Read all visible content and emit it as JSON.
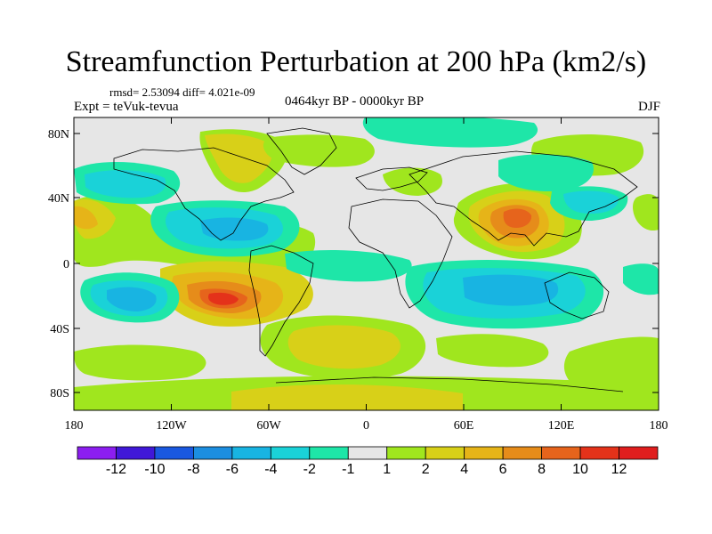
{
  "title": "Streamfunction Perturbation at 200 hPa (km2/s)",
  "stats": "rmsd= 2.53094 diff= 4.021e-09",
  "experiment": "Expt = teVuk-tevua",
  "period": "0464kyr BP - 0000kyr BP",
  "season": "DJF",
  "y_ticks": [
    "80N",
    "40N",
    "0",
    "40S",
    "80S"
  ],
  "x_ticks": [
    "180",
    "120W",
    "60W",
    "0",
    "60E",
    "120E",
    "180"
  ],
  "colorbar": {
    "labels": [
      "-12",
      "-10",
      "-8",
      "-6",
      "-4",
      "-2",
      "-1",
      "1",
      "2",
      "4",
      "6",
      "8",
      "10",
      "12"
    ],
    "colors": [
      "#8c1ef0",
      "#4018d8",
      "#1a58e0",
      "#1c8ee0",
      "#18b4e2",
      "#1ad2d8",
      "#1ee6a8",
      "#e6e6e6",
      "#a0e61e",
      "#d8d018",
      "#e6b418",
      "#e68c1a",
      "#e6641c",
      "#e4321a",
      "#e01e1e"
    ]
  },
  "background": "#e6e6e6"
}
